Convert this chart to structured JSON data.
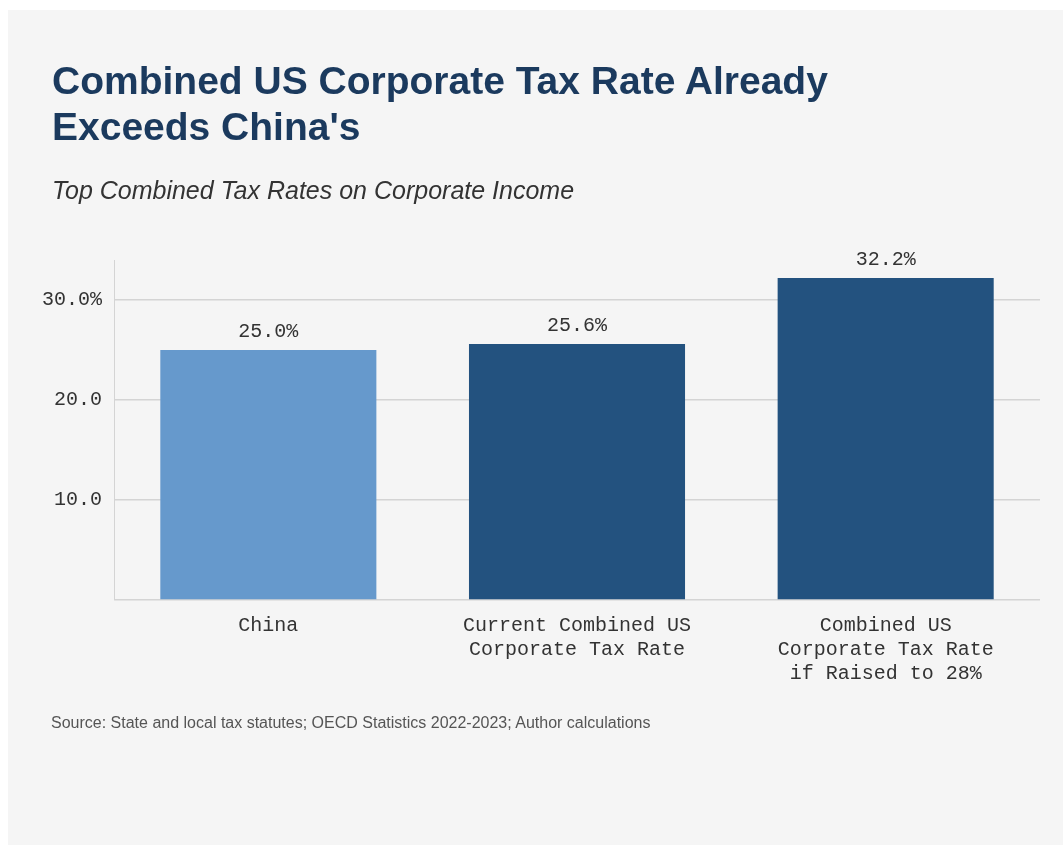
{
  "chart_data": {
    "type": "bar",
    "title": "Combined US Corporate Tax Rate Already Exceeds China's",
    "subtitle": "Top Combined Tax Rates on Corporate Income",
    "categories": [
      "China",
      "Current Combined US Corporate Tax Rate",
      "Combined US Corporate Tax Rate if Raised to 28%"
    ],
    "values": [
      25.0,
      25.6,
      32.2
    ],
    "colors": [
      "#6699cc",
      "#23527f",
      "#23527f"
    ],
    "value_labels": [
      "25.0%",
      "25.6%",
      "32.2%"
    ],
    "yticks": [
      {
        "value": 0,
        "label": null
      },
      {
        "value": 10,
        "label": "10.0"
      },
      {
        "value": 20,
        "label": "20.0"
      },
      {
        "value": 30,
        "label": "30.0%"
      }
    ],
    "ylim": [
      0,
      34
    ],
    "grid": "y",
    "legend": false,
    "annotations": [
      "Source: State and local tax statutes; OECD Statistics 2022-2023; Author calculations"
    ]
  }
}
